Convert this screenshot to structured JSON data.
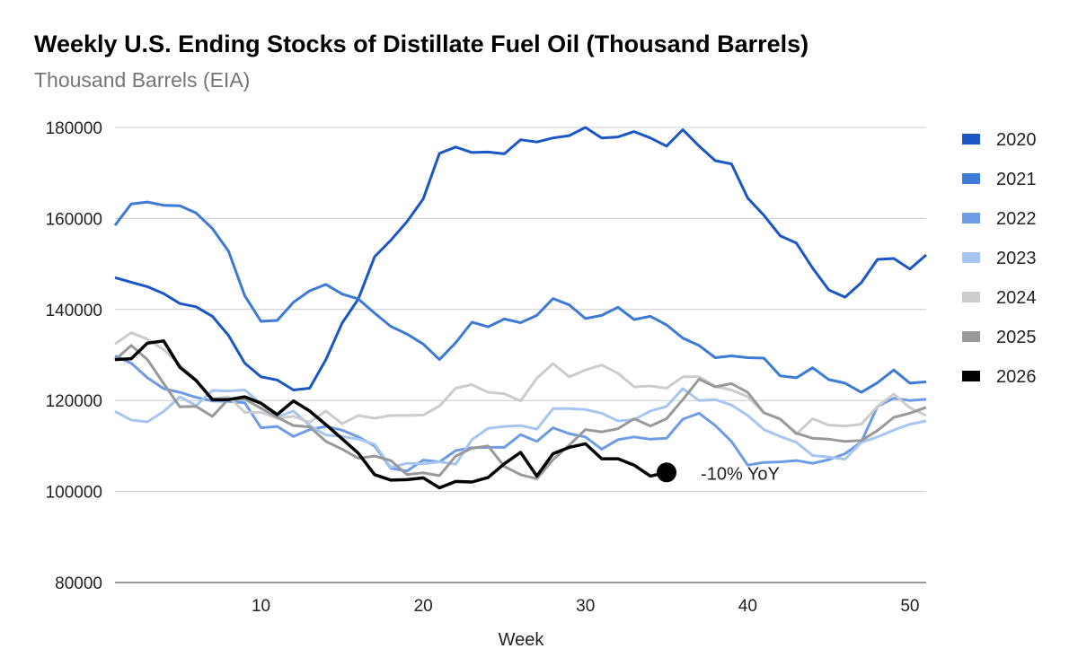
{
  "chart_data": {
    "type": "line",
    "title": "Weekly U.S. Ending Stocks of Distillate Fuel Oil (Thousand Barrels)",
    "subtitle": "Thousand Barrels (EIA)",
    "xlabel": "Week",
    "ylabel": "",
    "xlim": [
      1,
      51
    ],
    "ylim": [
      80000,
      180000
    ],
    "xticks": [
      10,
      20,
      30,
      40,
      50
    ],
    "yticks": [
      80000,
      100000,
      120000,
      140000,
      160000,
      180000
    ],
    "grid": true,
    "legend_position": "right",
    "series": [
      {
        "name": "2020",
        "color": "#1a56c4",
        "values": [
          147000,
          146000,
          145000,
          143500,
          141300,
          140600,
          138500,
          134300,
          128200,
          125200,
          124500,
          122300,
          122700,
          129000,
          137000,
          142300,
          151600,
          155200,
          159300,
          164300,
          174300,
          175700,
          174500,
          174600,
          174200,
          177300,
          176800,
          177700,
          178200,
          180000,
          177700,
          177900,
          179100,
          177700,
          175900,
          179500,
          175900,
          172700,
          172000,
          164500,
          160700,
          156200,
          154600,
          149100,
          144300,
          142700,
          145900,
          151000,
          151200,
          148900,
          152000
        ]
      },
      {
        "name": "2021",
        "color": "#3d7ad4",
        "values": [
          158500,
          163200,
          163600,
          162900,
          162800,
          161200,
          157800,
          152800,
          143000,
          137400,
          137600,
          141600,
          144100,
          145500,
          143400,
          142300,
          139200,
          136300,
          134600,
          132400,
          129000,
          132700,
          137200,
          136200,
          137900,
          137100,
          138700,
          142400,
          141000,
          138000,
          138700,
          140500,
          137800,
          138500,
          136600,
          133700,
          132100,
          129400,
          129800,
          129400,
          129300,
          125400,
          125000,
          127200,
          124600,
          123800,
          121800,
          123900,
          126700,
          123800,
          124100
        ]
      },
      {
        "name": "2022",
        "color": "#6e9be6",
        "values": [
          129800,
          128200,
          125000,
          122600,
          121800,
          120700,
          119900,
          119800,
          119500,
          114000,
          114300,
          112100,
          113600,
          114300,
          113500,
          112000,
          110000,
          105100,
          104500,
          106900,
          106500,
          109000,
          109600,
          109700,
          109700,
          112500,
          111000,
          114000,
          112700,
          112000,
          109300,
          111400,
          112000,
          111500,
          111700,
          115900,
          117200,
          114500,
          111000,
          105800,
          106400,
          106500,
          106800,
          106200,
          107000,
          108300,
          110900,
          118700,
          120500,
          120000,
          120300
        ]
      },
      {
        "name": "2023",
        "color": "#a8c5f1",
        "values": [
          117600,
          115700,
          115300,
          117600,
          120800,
          118900,
          122200,
          122100,
          122300,
          119300,
          116400,
          117700,
          114500,
          112400,
          112100,
          111500,
          110400,
          105300,
          106200,
          106100,
          106500,
          106000,
          111400,
          113900,
          114300,
          114500,
          113700,
          118200,
          118200,
          118000,
          117200,
          115500,
          115800,
          117700,
          118700,
          122600,
          120000,
          120200,
          119000,
          116700,
          113600,
          112100,
          110800,
          107900,
          107600,
          107100,
          110800,
          112000,
          113500,
          114800,
          115500
        ]
      },
      {
        "name": "2024",
        "color": "#cccccc",
        "values": [
          132400,
          134900,
          133500,
          131200,
          127800,
          124500,
          120400,
          120800,
          117400,
          117400,
          116100,
          116500,
          115200,
          117700,
          114900,
          116700,
          116100,
          116700,
          116700,
          116800,
          118800,
          122700,
          123500,
          121800,
          121500,
          119900,
          124900,
          128100,
          125200,
          126700,
          127800,
          126000,
          123000,
          123200,
          122700,
          125200,
          125200,
          123100,
          122300,
          120800,
          117300,
          116000,
          112600,
          116000,
          114600,
          114400,
          114800,
          118700,
          121400,
          118400,
          116700
        ]
      },
      {
        "name": "2025",
        "color": "#999999",
        "values": [
          128900,
          132100,
          129000,
          123700,
          118600,
          118700,
          116500,
          120300,
          120300,
          118300,
          116300,
          114500,
          114200,
          111000,
          109300,
          107300,
          107800,
          106800,
          103700,
          104100,
          103500,
          107800,
          109500,
          110000,
          105500,
          103700,
          102800,
          107000,
          110200,
          113600,
          113100,
          113800,
          116000,
          114400,
          116000,
          120200,
          124700,
          123000,
          123700,
          121800,
          117300,
          115900,
          112800,
          111700,
          111500,
          111000,
          111200,
          113400,
          116300,
          117200,
          118500
        ]
      },
      {
        "name": "2026",
        "color": "#000000",
        "values": [
          129000,
          129200,
          132600,
          133100,
          127300,
          124400,
          120200,
          120200,
          120800,
          119400,
          116900,
          119900,
          117700,
          114700,
          111600,
          108400,
          103700,
          102500,
          102600,
          103000,
          100800,
          102200,
          102100,
          103100,
          106100,
          108600,
          103400,
          108300,
          109700,
          110500,
          107200,
          107200,
          105800,
          103400,
          104200
        ]
      }
    ],
    "annotations": [
      {
        "text": "-10% YoY",
        "x": 35,
        "y": 104200,
        "marker": "circle"
      }
    ]
  }
}
